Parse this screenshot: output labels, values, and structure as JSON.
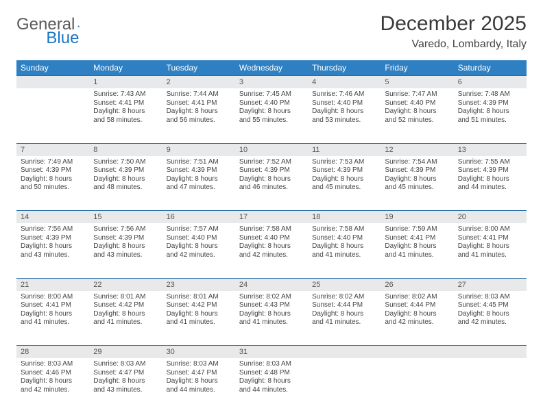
{
  "logo": {
    "word1": "General",
    "word2": "Blue"
  },
  "title": "December 2025",
  "location": "Varedo, Lombardy, Italy",
  "header_bg": "#2f80c3",
  "daynum_bg": "#e7e9ea",
  "border_color": "#2b6ca3",
  "dow": [
    "Sunday",
    "Monday",
    "Tuesday",
    "Wednesday",
    "Thursday",
    "Friday",
    "Saturday"
  ],
  "weeks": [
    [
      {
        "n": "",
        "lines": []
      },
      {
        "n": "1",
        "lines": [
          "Sunrise: 7:43 AM",
          "Sunset: 4:41 PM",
          "Daylight: 8 hours and 58 minutes."
        ]
      },
      {
        "n": "2",
        "lines": [
          "Sunrise: 7:44 AM",
          "Sunset: 4:41 PM",
          "Daylight: 8 hours and 56 minutes."
        ]
      },
      {
        "n": "3",
        "lines": [
          "Sunrise: 7:45 AM",
          "Sunset: 4:40 PM",
          "Daylight: 8 hours and 55 minutes."
        ]
      },
      {
        "n": "4",
        "lines": [
          "Sunrise: 7:46 AM",
          "Sunset: 4:40 PM",
          "Daylight: 8 hours and 53 minutes."
        ]
      },
      {
        "n": "5",
        "lines": [
          "Sunrise: 7:47 AM",
          "Sunset: 4:40 PM",
          "Daylight: 8 hours and 52 minutes."
        ]
      },
      {
        "n": "6",
        "lines": [
          "Sunrise: 7:48 AM",
          "Sunset: 4:39 PM",
          "Daylight: 8 hours and 51 minutes."
        ]
      }
    ],
    [
      {
        "n": "7",
        "lines": [
          "Sunrise: 7:49 AM",
          "Sunset: 4:39 PM",
          "Daylight: 8 hours and 50 minutes."
        ]
      },
      {
        "n": "8",
        "lines": [
          "Sunrise: 7:50 AM",
          "Sunset: 4:39 PM",
          "Daylight: 8 hours and 48 minutes."
        ]
      },
      {
        "n": "9",
        "lines": [
          "Sunrise: 7:51 AM",
          "Sunset: 4:39 PM",
          "Daylight: 8 hours and 47 minutes."
        ]
      },
      {
        "n": "10",
        "lines": [
          "Sunrise: 7:52 AM",
          "Sunset: 4:39 PM",
          "Daylight: 8 hours and 46 minutes."
        ]
      },
      {
        "n": "11",
        "lines": [
          "Sunrise: 7:53 AM",
          "Sunset: 4:39 PM",
          "Daylight: 8 hours and 45 minutes."
        ]
      },
      {
        "n": "12",
        "lines": [
          "Sunrise: 7:54 AM",
          "Sunset: 4:39 PM",
          "Daylight: 8 hours and 45 minutes."
        ]
      },
      {
        "n": "13",
        "lines": [
          "Sunrise: 7:55 AM",
          "Sunset: 4:39 PM",
          "Daylight: 8 hours and 44 minutes."
        ]
      }
    ],
    [
      {
        "n": "14",
        "lines": [
          "Sunrise: 7:56 AM",
          "Sunset: 4:39 PM",
          "Daylight: 8 hours and 43 minutes."
        ]
      },
      {
        "n": "15",
        "lines": [
          "Sunrise: 7:56 AM",
          "Sunset: 4:39 PM",
          "Daylight: 8 hours and 43 minutes."
        ]
      },
      {
        "n": "16",
        "lines": [
          "Sunrise: 7:57 AM",
          "Sunset: 4:40 PM",
          "Daylight: 8 hours and 42 minutes."
        ]
      },
      {
        "n": "17",
        "lines": [
          "Sunrise: 7:58 AM",
          "Sunset: 4:40 PM",
          "Daylight: 8 hours and 42 minutes."
        ]
      },
      {
        "n": "18",
        "lines": [
          "Sunrise: 7:58 AM",
          "Sunset: 4:40 PM",
          "Daylight: 8 hours and 41 minutes."
        ]
      },
      {
        "n": "19",
        "lines": [
          "Sunrise: 7:59 AM",
          "Sunset: 4:41 PM",
          "Daylight: 8 hours and 41 minutes."
        ]
      },
      {
        "n": "20",
        "lines": [
          "Sunrise: 8:00 AM",
          "Sunset: 4:41 PM",
          "Daylight: 8 hours and 41 minutes."
        ]
      }
    ],
    [
      {
        "n": "21",
        "lines": [
          "Sunrise: 8:00 AM",
          "Sunset: 4:41 PM",
          "Daylight: 8 hours and 41 minutes."
        ]
      },
      {
        "n": "22",
        "lines": [
          "Sunrise: 8:01 AM",
          "Sunset: 4:42 PM",
          "Daylight: 8 hours and 41 minutes."
        ]
      },
      {
        "n": "23",
        "lines": [
          "Sunrise: 8:01 AM",
          "Sunset: 4:42 PM",
          "Daylight: 8 hours and 41 minutes."
        ]
      },
      {
        "n": "24",
        "lines": [
          "Sunrise: 8:02 AM",
          "Sunset: 4:43 PM",
          "Daylight: 8 hours and 41 minutes."
        ]
      },
      {
        "n": "25",
        "lines": [
          "Sunrise: 8:02 AM",
          "Sunset: 4:44 PM",
          "Daylight: 8 hours and 41 minutes."
        ]
      },
      {
        "n": "26",
        "lines": [
          "Sunrise: 8:02 AM",
          "Sunset: 4:44 PM",
          "Daylight: 8 hours and 42 minutes."
        ]
      },
      {
        "n": "27",
        "lines": [
          "Sunrise: 8:03 AM",
          "Sunset: 4:45 PM",
          "Daylight: 8 hours and 42 minutes."
        ]
      }
    ],
    [
      {
        "n": "28",
        "lines": [
          "Sunrise: 8:03 AM",
          "Sunset: 4:46 PM",
          "Daylight: 8 hours and 42 minutes."
        ]
      },
      {
        "n": "29",
        "lines": [
          "Sunrise: 8:03 AM",
          "Sunset: 4:47 PM",
          "Daylight: 8 hours and 43 minutes."
        ]
      },
      {
        "n": "30",
        "lines": [
          "Sunrise: 8:03 AM",
          "Sunset: 4:47 PM",
          "Daylight: 8 hours and 44 minutes."
        ]
      },
      {
        "n": "31",
        "lines": [
          "Sunrise: 8:03 AM",
          "Sunset: 4:48 PM",
          "Daylight: 8 hours and 44 minutes."
        ]
      },
      {
        "n": "",
        "lines": []
      },
      {
        "n": "",
        "lines": []
      },
      {
        "n": "",
        "lines": []
      }
    ]
  ]
}
